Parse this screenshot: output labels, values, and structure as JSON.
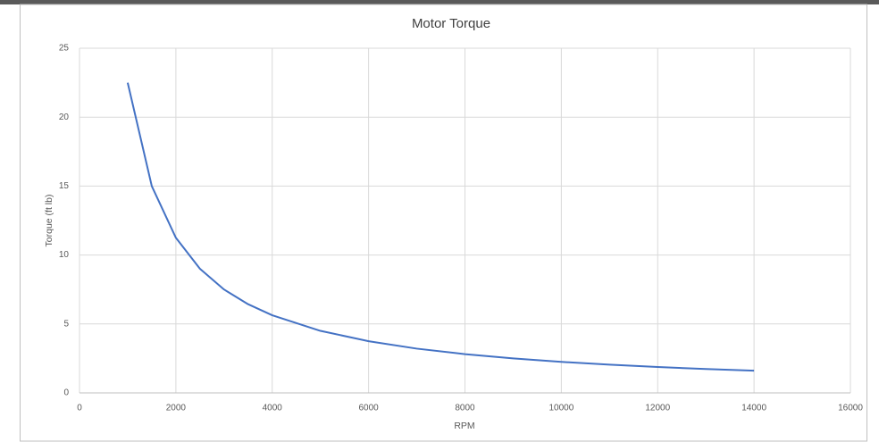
{
  "chart_data": {
    "type": "line",
    "title": "Motor Torque",
    "x_label": "RPM",
    "y_label": "Torque (ft lb)",
    "x": [
      1000,
      1500,
      2000,
      2500,
      3000,
      3500,
      4000,
      5000,
      6000,
      7000,
      8000,
      9000,
      10000,
      11000,
      12000,
      13000,
      14000
    ],
    "values": [
      22.5,
      15,
      11.25,
      9,
      7.5,
      6.43,
      5.63,
      4.5,
      3.75,
      3.21,
      2.81,
      2.5,
      2.25,
      2.05,
      1.88,
      1.73,
      1.61
    ],
    "color": "#4472c4",
    "xlim": [
      0,
      16000
    ],
    "xticks": [
      0,
      2000,
      4000,
      6000,
      8000,
      10000,
      12000,
      14000,
      16000
    ],
    "ylim": [
      0,
      25
    ],
    "yticks": [
      0,
      5,
      10,
      15,
      20,
      25
    ],
    "grid": true
  }
}
